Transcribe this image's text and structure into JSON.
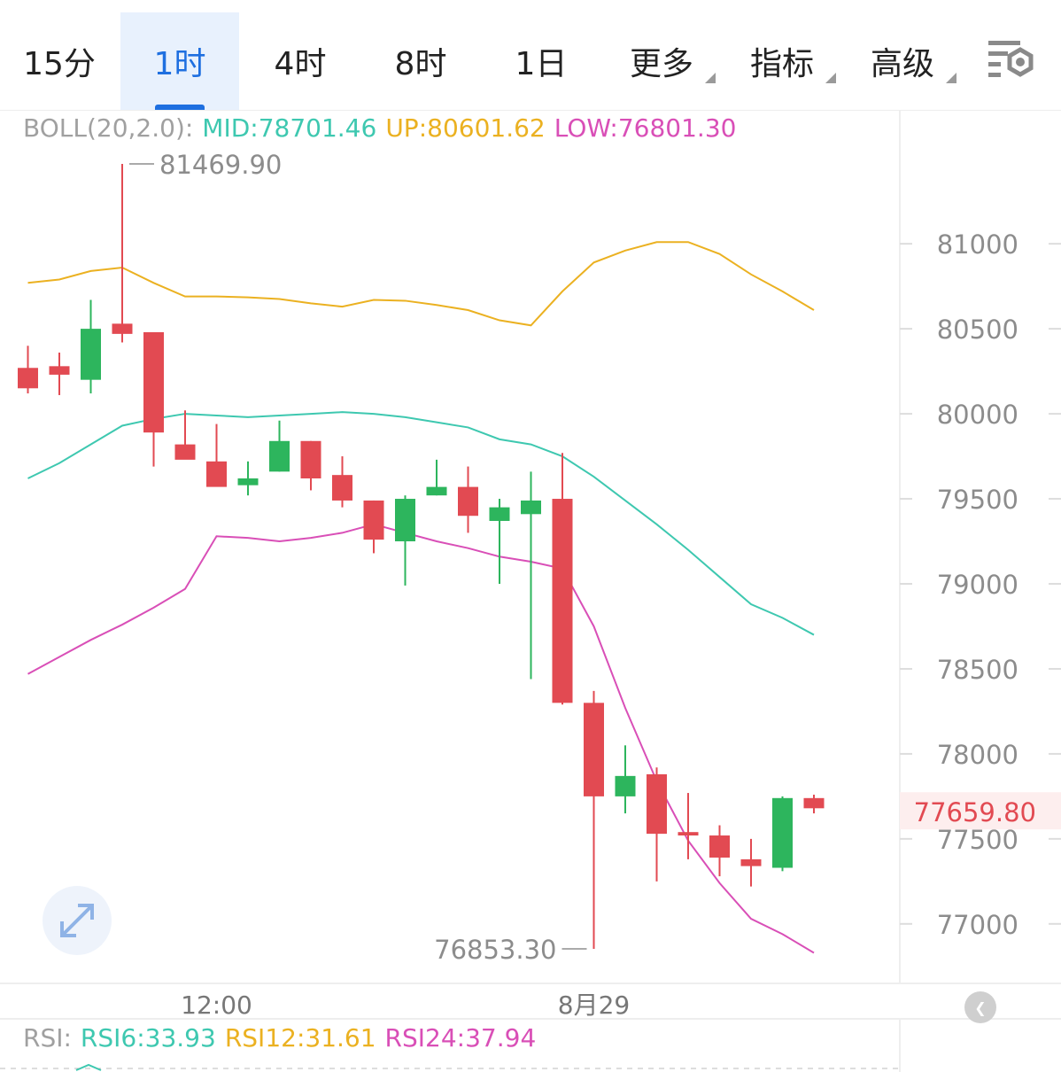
{
  "tabs": [
    {
      "label": "15分",
      "active": false,
      "dropdown": false
    },
    {
      "label": "1时",
      "active": true,
      "dropdown": false
    },
    {
      "label": "4时",
      "active": false,
      "dropdown": false
    },
    {
      "label": "8时",
      "active": false,
      "dropdown": false
    },
    {
      "label": "1日",
      "active": false,
      "dropdown": false
    },
    {
      "label": "更多",
      "active": false,
      "dropdown": true
    },
    {
      "label": "指标",
      "active": false,
      "dropdown": true
    },
    {
      "label": "高级",
      "active": false,
      "dropdown": true
    }
  ],
  "settings_icon": "chart-settings-icon",
  "boll_legend": {
    "name": "BOLL(20,2.0):",
    "mid": "MID:78701.46",
    "up": "UP:80601.62",
    "low": "LOW:76801.30"
  },
  "rsi_legend": {
    "name": "RSI:",
    "rsi6": "RSI6:33.93",
    "rsi12": "RSI12:31.61",
    "rsi24": "RSI24:37.94"
  },
  "colors": {
    "up": "#2db55d",
    "down": "#e24a52",
    "boll_up": "#ebb121",
    "boll_mid": "#3ec8b0",
    "boll_low": "#d94fb7",
    "axis_text": "#8c8c8c",
    "grid": "#eeeeee",
    "last_price": "#e24a52",
    "accent": "#1e6fe0"
  },
  "chart_data": {
    "type": "candlestick",
    "title": "",
    "xlabel": "",
    "ylabel": "",
    "ylim": [
      76650,
      81600
    ],
    "y_ticks": [
      81000,
      80500,
      80000,
      79500,
      79000,
      78500,
      78000,
      77500,
      77000
    ],
    "x_tick_labels": [
      {
        "index": 6,
        "label": "12:00"
      },
      {
        "index": 18,
        "label": "8月29"
      }
    ],
    "candles": [
      {
        "o": 80270,
        "h": 80400,
        "l": 80120,
        "c": 80150
      },
      {
        "o": 80280,
        "h": 80360,
        "l": 80110,
        "c": 80230
      },
      {
        "o": 80200,
        "h": 80670,
        "l": 80120,
        "c": 80500
      },
      {
        "o": 80530,
        "h": 81469.9,
        "l": 80420,
        "c": 80470
      },
      {
        "o": 80480,
        "h": 80480,
        "l": 79690,
        "c": 79890
      },
      {
        "o": 79820,
        "h": 80020,
        "l": 79760,
        "c": 79730
      },
      {
        "o": 79720,
        "h": 79940,
        "l": 79580,
        "c": 79570
      },
      {
        "o": 79580,
        "h": 79720,
        "l": 79520,
        "c": 79620
      },
      {
        "o": 79660,
        "h": 79960,
        "l": 79660,
        "c": 79840
      },
      {
        "o": 79840,
        "h": 79840,
        "l": 79550,
        "c": 79620
      },
      {
        "o": 79640,
        "h": 79750,
        "l": 79450,
        "c": 79490
      },
      {
        "o": 79490,
        "h": 79490,
        "l": 79180,
        "c": 79260
      },
      {
        "o": 79250,
        "h": 79520,
        "l": 78990,
        "c": 79500
      },
      {
        "o": 79520,
        "h": 79730,
        "l": 79520,
        "c": 79570
      },
      {
        "o": 79570,
        "h": 79690,
        "l": 79300,
        "c": 79400
      },
      {
        "o": 79370,
        "h": 79500,
        "l": 79000,
        "c": 79450
      },
      {
        "o": 79410,
        "h": 79660,
        "l": 78440,
        "c": 79490
      },
      {
        "o": 79500,
        "h": 79770,
        "l": 78290,
        "c": 78300
      },
      {
        "o": 78300,
        "h": 78370,
        "l": 76853.3,
        "c": 77750
      },
      {
        "o": 77750,
        "h": 78050,
        "l": 77650,
        "c": 77870
      },
      {
        "o": 77880,
        "h": 77920,
        "l": 77250,
        "c": 77530
      },
      {
        "o": 77540,
        "h": 77770,
        "l": 77380,
        "c": 77520
      },
      {
        "o": 77520,
        "h": 77580,
        "l": 77280,
        "c": 77390
      },
      {
        "o": 77380,
        "h": 77500,
        "l": 77220,
        "c": 77340
      },
      {
        "o": 77330,
        "h": 77750,
        "l": 77310,
        "c": 77740
      },
      {
        "o": 77740,
        "h": 77760,
        "l": 77650,
        "c": 77680
      }
    ],
    "boll_upper": [
      80770,
      80790,
      80840,
      80860,
      80770,
      80690,
      80690,
      80685,
      80675,
      80650,
      80630,
      80670,
      80665,
      80640,
      80610,
      80550,
      80520,
      80720,
      80890,
      80960,
      81010,
      81010,
      80940,
      80820,
      80720,
      80610
    ],
    "boll_mid": [
      79620,
      79710,
      79820,
      79930,
      79970,
      80000,
      79990,
      79980,
      79990,
      80000,
      80010,
      80000,
      79980,
      79950,
      79920,
      79850,
      79820,
      79750,
      79630,
      79490,
      79350,
      79200,
      79040,
      78880,
      78800,
      78700
    ],
    "boll_lower": [
      78470,
      78570,
      78670,
      78760,
      78860,
      78970,
      79280,
      79270,
      79250,
      79270,
      79300,
      79350,
      79300,
      79250,
      79210,
      79160,
      79130,
      79090,
      78750,
      78270,
      77840,
      77490,
      77240,
      77030,
      76940,
      76830
    ],
    "max_label": "81469.90",
    "min_label": "76853.30",
    "last_price": 77659.8,
    "last_price_label": "77659.80",
    "rsi": {
      "rsi6": 33.93,
      "rsi12": 31.61,
      "rsi24": 37.94
    }
  }
}
